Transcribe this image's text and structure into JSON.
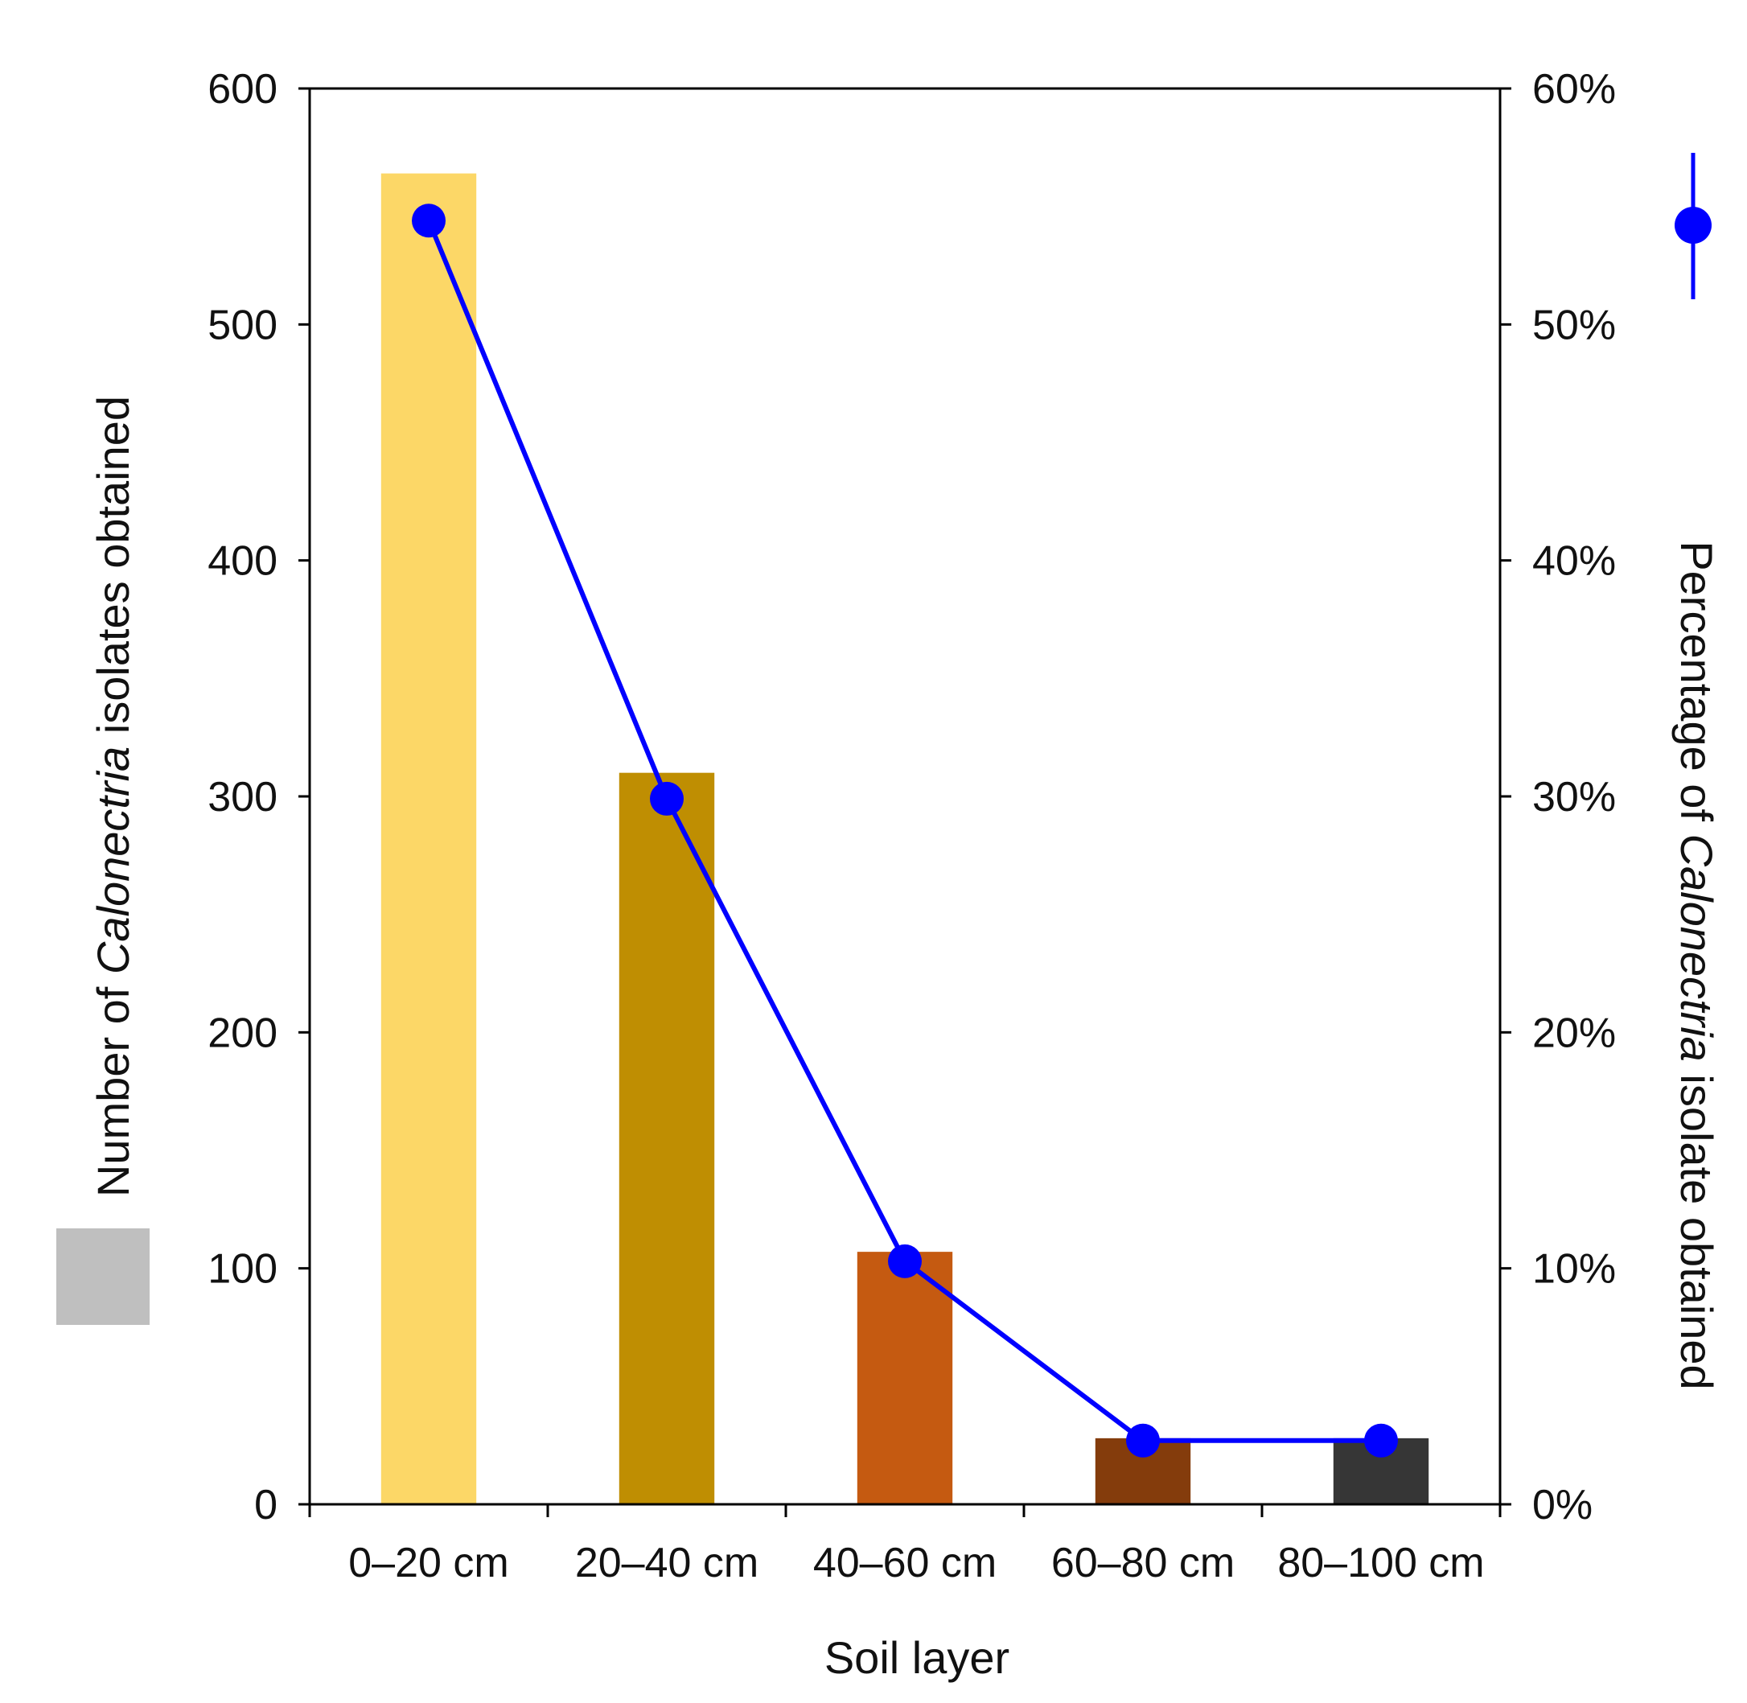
{
  "chart_data": {
    "type": "bar",
    "categories": [
      "0–20 cm",
      "20–40 cm",
      "40–60 cm",
      "60–80 cm",
      "80–100 cm"
    ],
    "series": [
      {
        "axis": "left",
        "type": "bar",
        "values": [
          564,
          310,
          107,
          28,
          28
        ],
        "colors": [
          "#FCD767",
          "#BF8E02",
          "#C55A11",
          "#843C0C",
          "#363636"
        ]
      },
      {
        "axis": "right",
        "type": "line",
        "values": [
          0.544,
          0.299,
          0.103,
          0.027,
          0.027
        ],
        "color": "#0000FF"
      }
    ],
    "xlabel": "Soil layer",
    "ylabel": {
      "before": "Number of ",
      "italic": "Calonectria",
      "after": " isolates obtained"
    },
    "ylabel_right": {
      "before": "Percentage of ",
      "italic": "Calonectria",
      "after": " isolate obtained"
    },
    "ylim": [
      0,
      600
    ],
    "y_ticks": [
      "0",
      "100",
      "200",
      "300",
      "400",
      "500",
      "600"
    ],
    "ylim_right": [
      0,
      0.6
    ],
    "y_right_ticks": [
      "0%",
      "10%",
      "20%",
      "30%",
      "40%",
      "50%",
      "60%"
    ],
    "legend": {
      "placement": "outside-left-and-right",
      "bar_swatch_color": "#BFBFBF",
      "line_marker_color": "#0000FF"
    },
    "grid": false
  }
}
